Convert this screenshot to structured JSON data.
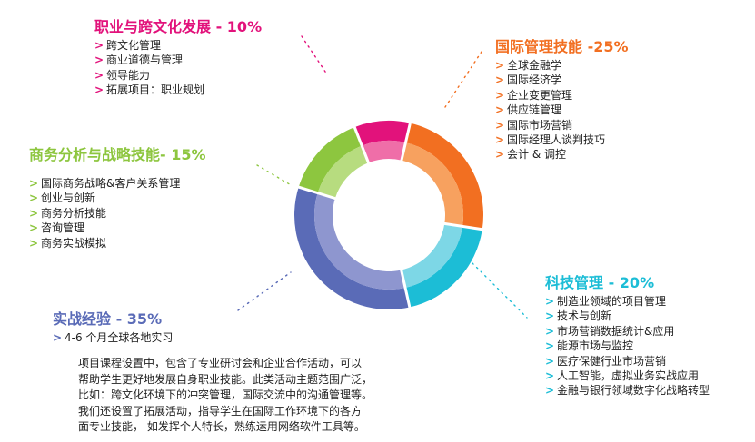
{
  "colors": {
    "career": "#e2127b",
    "career_inner": "#ef6ea8",
    "international": "#f26f21",
    "international_inner": "#f7a15f",
    "tech": "#1cbdd6",
    "tech_inner": "#7dd7e6",
    "practical": "#5a6bb7",
    "practical_inner": "#8e96cf",
    "business": "#8dc63f",
    "business_inner": "#b7dc7f",
    "text": "#222222"
  },
  "chart_data": {
    "type": "pie",
    "style": "donut",
    "slices": [
      {
        "name": "国际管理技能",
        "value": 25,
        "color": "#f26f21"
      },
      {
        "name": "科技管理",
        "value": 20,
        "color": "#1cbdd6"
      },
      {
        "name": "实战经验",
        "value": 35,
        "color": "#5a6bb7"
      },
      {
        "name": "商务分析与战略技能",
        "value": 15,
        "color": "#8dc63f"
      },
      {
        "name": "职业与跨文化发展",
        "value": 10,
        "color": "#e2127b"
      }
    ]
  },
  "career": {
    "title": "职业与跨文化发展",
    "pct": " - 10%",
    "arrow": ">",
    "items": [
      "跨文化管理",
      "商业道德与管理",
      "领导能力",
      "拓展项目：职业规划"
    ]
  },
  "international": {
    "title": "国际管理技能",
    "pct": " -25%",
    "arrow": ">",
    "items": [
      "全球金融学",
      "国际经济学",
      "企业变更管理",
      "供应链管理",
      "国际市场营销",
      "国际经理人谈判技巧",
      "会计 & 调控"
    ]
  },
  "business": {
    "title": "商务分析与战略技能",
    "pct": "- 15%",
    "arrow": ">",
    "items": [
      "国际商务战略&客户关系管理",
      "创业与创新",
      "商务分析技能",
      "咨询管理",
      "商务实战模拟"
    ]
  },
  "tech": {
    "title": "科技管理",
    "pct": "  - 20%",
    "arrow": ">",
    "items": [
      "制造业领域的项目管理",
      "技术与创新",
      "市场营销数据统计&应用",
      "能源市场与监控",
      "医疗保健行业市场营销",
      "人工智能，虚拟业务实战应用",
      "金融与银行领域数字化战略转型"
    ]
  },
  "practical": {
    "title": "实战经验",
    "pct": " - 35%",
    "arrow": ">",
    "items": [
      "4-6 个月全球各地实习"
    ]
  },
  "description": {
    "lines": [
      "项目课程设置中，包含了专业研讨会和企业合作活动，可以",
      "帮助学生更好地发展自身职业技能。此类活动主题范围广泛，",
      "比如：跨文化环境下的冲突管理，国际交流中的沟通管理等。",
      "我们还设置了拓展活动，指导学生在国际工作环境下的各方",
      "面专业技能， 如发挥个人特长，熟练运用网络软件工具等。"
    ]
  }
}
